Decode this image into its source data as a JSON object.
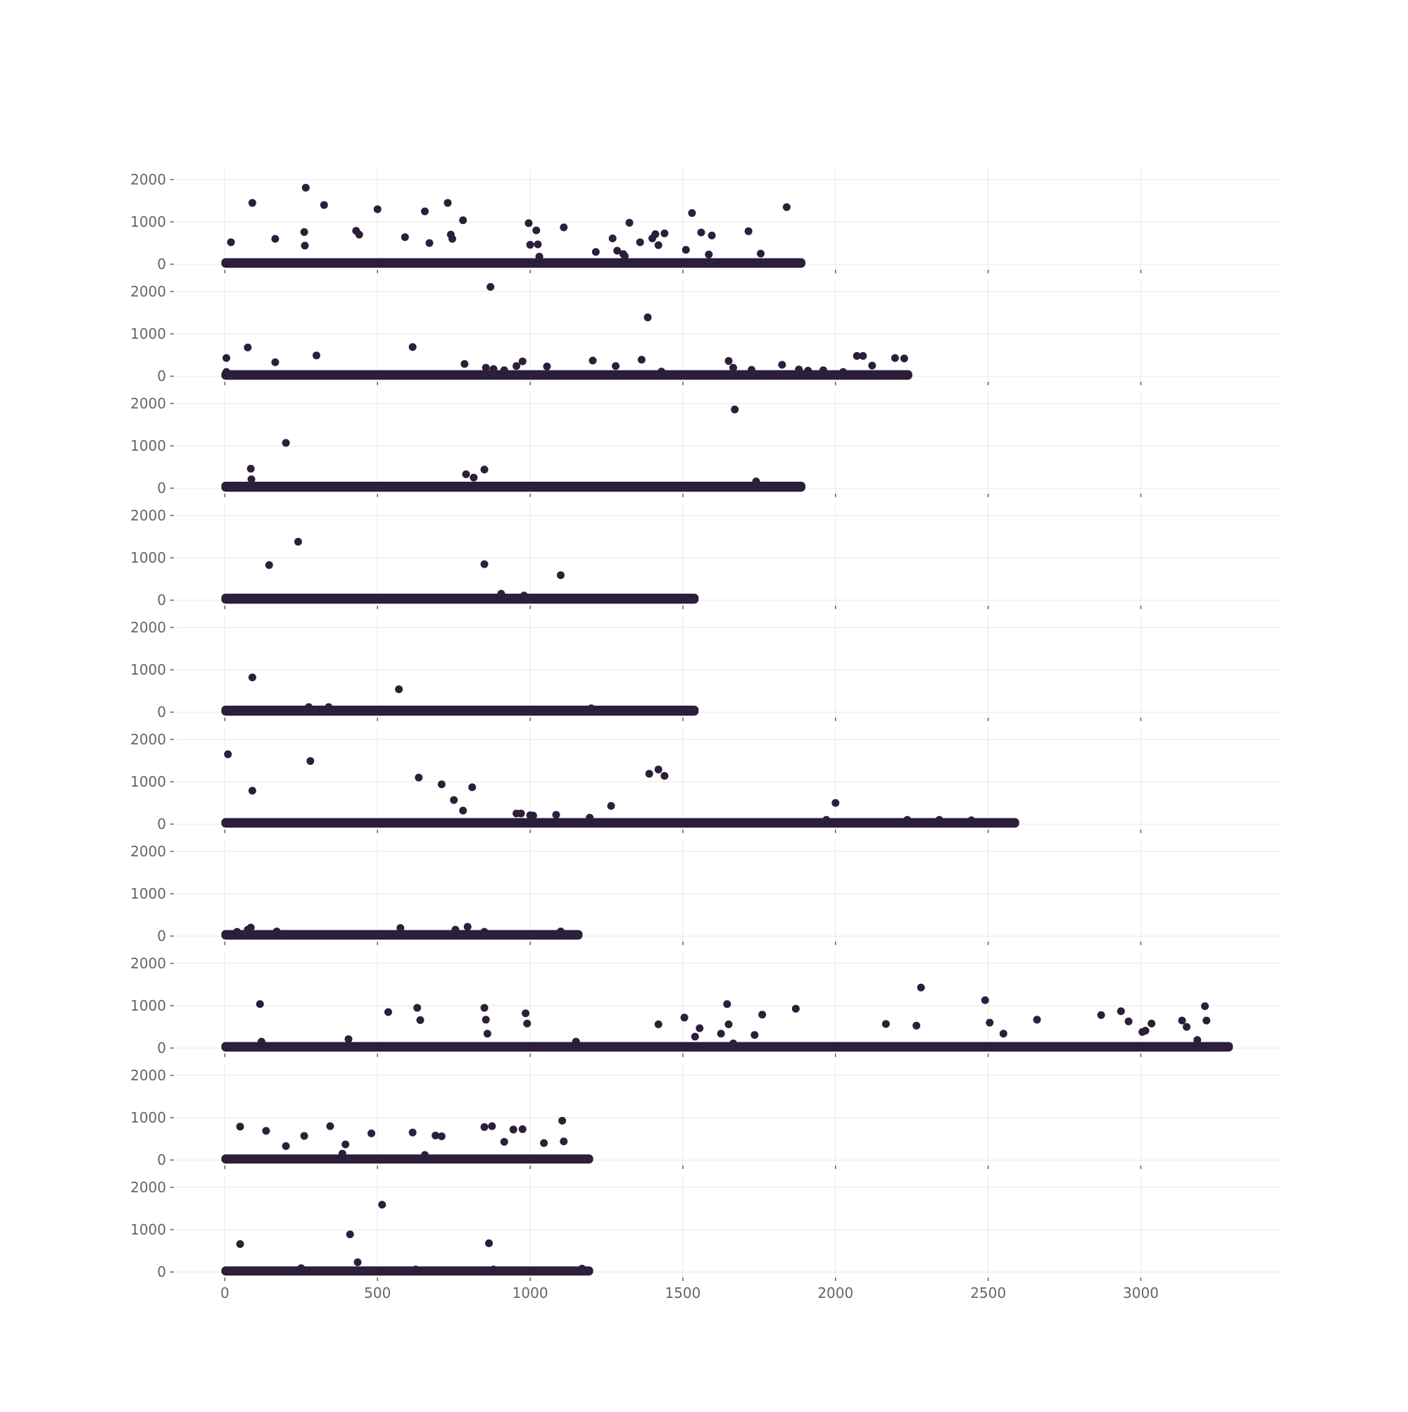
{
  "chart_data": {
    "type": "scatter",
    "layout": "10 vertically stacked panels sharing one x axis",
    "grid": true,
    "legend": "none",
    "point_color": "#2d1e3a",
    "grid_color": "#ebebeb",
    "background": "#ffffff",
    "x_ticks": [
      0,
      500,
      1000,
      1500,
      2000,
      2500,
      3000
    ],
    "y_ticks": [
      0,
      1000,
      2000
    ],
    "xlim": [
      -160,
      3460
    ],
    "ylim": [
      -80,
      2250
    ],
    "panels": [
      {
        "n": 1890,
        "baseline": [
          0,
          60
        ],
        "outliers": [
          [
            20,
            520
          ],
          [
            90,
            1450
          ],
          [
            165,
            600
          ],
          [
            260,
            760
          ],
          [
            262,
            440
          ],
          [
            265,
            1810
          ],
          [
            325,
            1400
          ],
          [
            430,
            790
          ],
          [
            440,
            700
          ],
          [
            500,
            1300
          ],
          [
            590,
            640
          ],
          [
            655,
            1250
          ],
          [
            670,
            500
          ],
          [
            730,
            1450
          ],
          [
            740,
            700
          ],
          [
            745,
            600
          ],
          [
            780,
            1040
          ],
          [
            995,
            970
          ],
          [
            1000,
            460
          ],
          [
            1020,
            800
          ],
          [
            1025,
            470
          ],
          [
            1030,
            180
          ],
          [
            1110,
            870
          ],
          [
            1215,
            290
          ],
          [
            1270,
            610
          ],
          [
            1285,
            320
          ],
          [
            1305,
            240
          ],
          [
            1310,
            190
          ],
          [
            1325,
            980
          ],
          [
            1360,
            520
          ],
          [
            1400,
            610
          ],
          [
            1410,
            710
          ],
          [
            1420,
            450
          ],
          [
            1440,
            730
          ],
          [
            1510,
            340
          ],
          [
            1530,
            1210
          ],
          [
            1560,
            750
          ],
          [
            1585,
            230
          ],
          [
            1595,
            680
          ],
          [
            1715,
            780
          ],
          [
            1755,
            250
          ],
          [
            1840,
            1350
          ]
        ]
      },
      {
        "n": 2240,
        "baseline": [
          0,
          60
        ],
        "outliers": [
          [
            5,
            430
          ],
          [
            5,
            100
          ],
          [
            75,
            680
          ],
          [
            165,
            330
          ],
          [
            300,
            490
          ],
          [
            615,
            690
          ],
          [
            785,
            290
          ],
          [
            855,
            200
          ],
          [
            870,
            2110
          ],
          [
            880,
            170
          ],
          [
            915,
            140
          ],
          [
            955,
            240
          ],
          [
            975,
            350
          ],
          [
            1055,
            230
          ],
          [
            1205,
            370
          ],
          [
            1280,
            240
          ],
          [
            1365,
            390
          ],
          [
            1385,
            1390
          ],
          [
            1430,
            110
          ],
          [
            1650,
            360
          ],
          [
            1665,
            200
          ],
          [
            1725,
            150
          ],
          [
            1825,
            270
          ],
          [
            1880,
            160
          ],
          [
            1910,
            130
          ],
          [
            1960,
            140
          ],
          [
            2025,
            100
          ],
          [
            2070,
            480
          ],
          [
            2090,
            480
          ],
          [
            2120,
            250
          ],
          [
            2195,
            430
          ],
          [
            2225,
            420
          ]
        ]
      },
      {
        "n": 1890,
        "baseline": [
          0,
          70
        ],
        "outliers": [
          [
            85,
            460
          ],
          [
            87,
            210
          ],
          [
            200,
            1070
          ],
          [
            790,
            330
          ],
          [
            815,
            250
          ],
          [
            850,
            440
          ],
          [
            1670,
            1860
          ],
          [
            1740,
            160
          ]
        ]
      },
      {
        "n": 1540,
        "baseline": [
          0,
          70
        ],
        "outliers": [
          [
            145,
            830
          ],
          [
            240,
            1380
          ],
          [
            850,
            850
          ],
          [
            905,
            150
          ],
          [
            980,
            110
          ],
          [
            1100,
            590
          ]
        ]
      },
      {
        "n": 1540,
        "baseline": [
          0,
          70
        ],
        "outliers": [
          [
            90,
            820
          ],
          [
            275,
            120
          ],
          [
            340,
            120
          ],
          [
            570,
            540
          ],
          [
            1200,
            90
          ]
        ]
      },
      {
        "n": 2590,
        "baseline": [
          0,
          60
        ],
        "outliers": [
          [
            10,
            1650
          ],
          [
            90,
            790
          ],
          [
            280,
            1490
          ],
          [
            635,
            1100
          ],
          [
            710,
            940
          ],
          [
            750,
            570
          ],
          [
            780,
            320
          ],
          [
            810,
            870
          ],
          [
            955,
            250
          ],
          [
            970,
            250
          ],
          [
            1000,
            210
          ],
          [
            1010,
            200
          ],
          [
            1085,
            220
          ],
          [
            1195,
            150
          ],
          [
            1265,
            430
          ],
          [
            1390,
            1190
          ],
          [
            1420,
            1290
          ],
          [
            1440,
            1140
          ],
          [
            1970,
            100
          ],
          [
            2000,
            500
          ],
          [
            2235,
            100
          ],
          [
            2340,
            100
          ],
          [
            2445,
            90
          ]
        ]
      },
      {
        "n": 1160,
        "baseline": [
          0,
          60
        ],
        "outliers": [
          [
            40,
            100
          ],
          [
            75,
            150
          ],
          [
            85,
            200
          ],
          [
            170,
            110
          ],
          [
            575,
            190
          ],
          [
            755,
            150
          ],
          [
            795,
            220
          ],
          [
            850,
            100
          ],
          [
            1100,
            110
          ]
        ]
      },
      {
        "n": 3290,
        "baseline": [
          0,
          60
        ],
        "outliers": [
          [
            115,
            1040
          ],
          [
            120,
            150
          ],
          [
            405,
            210
          ],
          [
            535,
            850
          ],
          [
            630,
            950
          ],
          [
            640,
            660
          ],
          [
            850,
            950
          ],
          [
            855,
            670
          ],
          [
            860,
            340
          ],
          [
            985,
            820
          ],
          [
            990,
            580
          ],
          [
            1150,
            150
          ],
          [
            1420,
            560
          ],
          [
            1505,
            720
          ],
          [
            1540,
            270
          ],
          [
            1555,
            470
          ],
          [
            1625,
            340
          ],
          [
            1645,
            1040
          ],
          [
            1650,
            560
          ],
          [
            1665,
            110
          ],
          [
            1735,
            310
          ],
          [
            1760,
            790
          ],
          [
            1870,
            930
          ],
          [
            2165,
            570
          ],
          [
            2265,
            530
          ],
          [
            2280,
            1430
          ],
          [
            2490,
            1130
          ],
          [
            2505,
            600
          ],
          [
            2550,
            340
          ],
          [
            2660,
            670
          ],
          [
            2870,
            780
          ],
          [
            2935,
            870
          ],
          [
            2960,
            630
          ],
          [
            3005,
            380
          ],
          [
            3015,
            410
          ],
          [
            3035,
            580
          ],
          [
            3135,
            650
          ],
          [
            3150,
            500
          ],
          [
            3185,
            190
          ],
          [
            3210,
            990
          ],
          [
            3215,
            650
          ]
        ]
      },
      {
        "n": 1195,
        "baseline": [
          0,
          50
        ],
        "outliers": [
          [
            50,
            790
          ],
          [
            135,
            690
          ],
          [
            200,
            330
          ],
          [
            260,
            570
          ],
          [
            345,
            800
          ],
          [
            385,
            150
          ],
          [
            395,
            370
          ],
          [
            480,
            630
          ],
          [
            615,
            650
          ],
          [
            655,
            120
          ],
          [
            690,
            580
          ],
          [
            710,
            560
          ],
          [
            850,
            780
          ],
          [
            875,
            800
          ],
          [
            915,
            430
          ],
          [
            945,
            720
          ],
          [
            975,
            730
          ],
          [
            1045,
            400
          ],
          [
            1105,
            930
          ],
          [
            1110,
            440
          ]
        ]
      },
      {
        "n": 1195,
        "baseline": [
          0,
          50
        ],
        "outliers": [
          [
            50,
            660
          ],
          [
            250,
            90
          ],
          [
            410,
            890
          ],
          [
            435,
            230
          ],
          [
            515,
            1590
          ],
          [
            625,
            60
          ],
          [
            865,
            680
          ],
          [
            880,
            60
          ],
          [
            1170,
            80
          ]
        ]
      }
    ]
  }
}
